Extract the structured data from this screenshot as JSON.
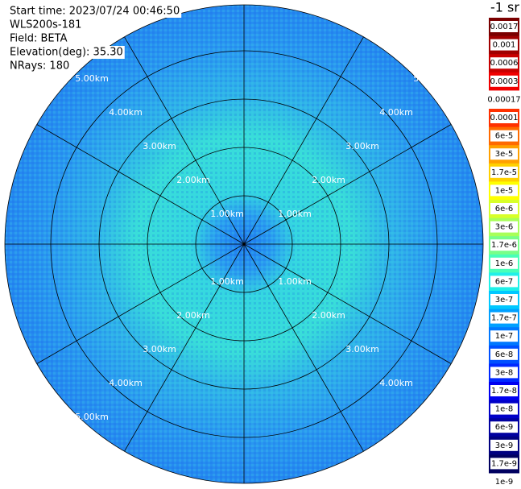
{
  "header": {
    "lines": [
      "Start time: 2023/07/24 00:46:50",
      "WLS200s-181",
      "Field: BETA",
      "Elevation(deg): 35.30",
      "NRays: 180"
    ]
  },
  "ring_labels": [
    "1.00km",
    "2.00km",
    "3.00km",
    "4.00km",
    "5.00km"
  ],
  "colorbar": {
    "title": "-1 sr",
    "labels": [
      "0.0017",
      "0.001",
      "0.0006",
      "0.0003",
      "0.00017",
      "0.0001",
      "6e-5",
      "3e-5",
      "1.7e-5",
      "1e-5",
      "6e-6",
      "3e-6",
      "1.7e-6",
      "1e-6",
      "6e-7",
      "3e-7",
      "1.7e-7",
      "1e-7",
      "6e-8",
      "3e-8",
      "1.7e-8",
      "1e-8",
      "6e-9",
      "3e-9",
      "1.7e-9",
      "1e-9"
    ],
    "colors": [
      "#7a0000",
      "#a00000",
      "#c80000",
      "#f00000",
      "#ffffff",
      "#ff3000",
      "#ff6a00",
      "#ffa000",
      "#ffd000",
      "#ffff00",
      "#d8ff28",
      "#a8ff58",
      "#78ff88",
      "#48ffb8",
      "#20f0e8",
      "#00c8ff",
      "#00a0ff",
      "#0078ff",
      "#0050ff",
      "#0028ff",
      "#0000f0",
      "#0000c8",
      "#0000a0",
      "#000080",
      "#000060"
    ]
  }
}
